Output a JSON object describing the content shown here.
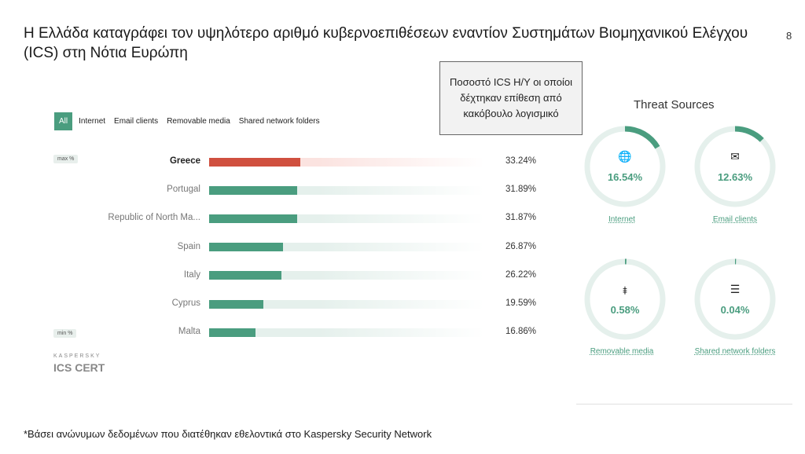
{
  "slide": {
    "title": "Η Ελλάδα καταγράφει τον υψηλότερο αριθμό κυβερνοεπιθέσεων εναντίον Συστημάτων Βιομηχανικού Ελέγχου (ICS) στη Νότια Ευρώπη",
    "page_number": "8",
    "callout": "Ποσοστό ICS Η/Υ οι οποίοι δέχτηκαν επίθεση από κακόβουλο λογισμικό",
    "footnote": "*Βάσει ανώνυμων δεδομένων που διατέθηκαν εθελοντικά στο Kaspersky Security Network"
  },
  "tabs": [
    {
      "label": "All",
      "active": true
    },
    {
      "label": "Internet",
      "active": false
    },
    {
      "label": "Email clients",
      "active": false
    },
    {
      "label": "Removable media",
      "active": false
    },
    {
      "label": "Shared network folders",
      "active": false
    }
  ],
  "tags": {
    "max": "max %",
    "min": "min %"
  },
  "logo": {
    "small": "KASPERSKY",
    "big": "ICS CERT"
  },
  "colors": {
    "accent": "#4a9d7f",
    "highlight": "#d0503f",
    "track": "#e5f0ec",
    "highlight_track": "#fbe3e0"
  },
  "chart_data": [
    {
      "type": "bar",
      "orientation": "horizontal",
      "categories": [
        "Greece",
        "Portugal",
        "Republic of North Ma...",
        "Spain",
        "Italy",
        "Cyprus",
        "Malta"
      ],
      "values": [
        33.24,
        31.89,
        31.87,
        26.87,
        26.22,
        19.59,
        16.86
      ],
      "value_labels": [
        "33.24%",
        "31.89%",
        "31.87%",
        "26.87%",
        "26.22%",
        "19.59%",
        "16.86%"
      ],
      "highlight_index": 0,
      "xlim": [
        0,
        100
      ]
    },
    {
      "type": "pie",
      "title": "Threat Sources",
      "items": [
        {
          "label": "Internet",
          "value": 16.54,
          "display": "16.54%",
          "icon": "globe-icon",
          "glyph": "🌐"
        },
        {
          "label": "Email clients",
          "value": 12.63,
          "display": "12.63%",
          "icon": "envelope-icon",
          "glyph": "✉"
        },
        {
          "label": "Removable media",
          "value": 0.58,
          "display": "0.58%",
          "icon": "usb-icon",
          "glyph": "⯒"
        },
        {
          "label": "Shared network folders",
          "value": 0.04,
          "display": "0.04%",
          "icon": "stack-icon",
          "glyph": "☰"
        }
      ]
    }
  ]
}
